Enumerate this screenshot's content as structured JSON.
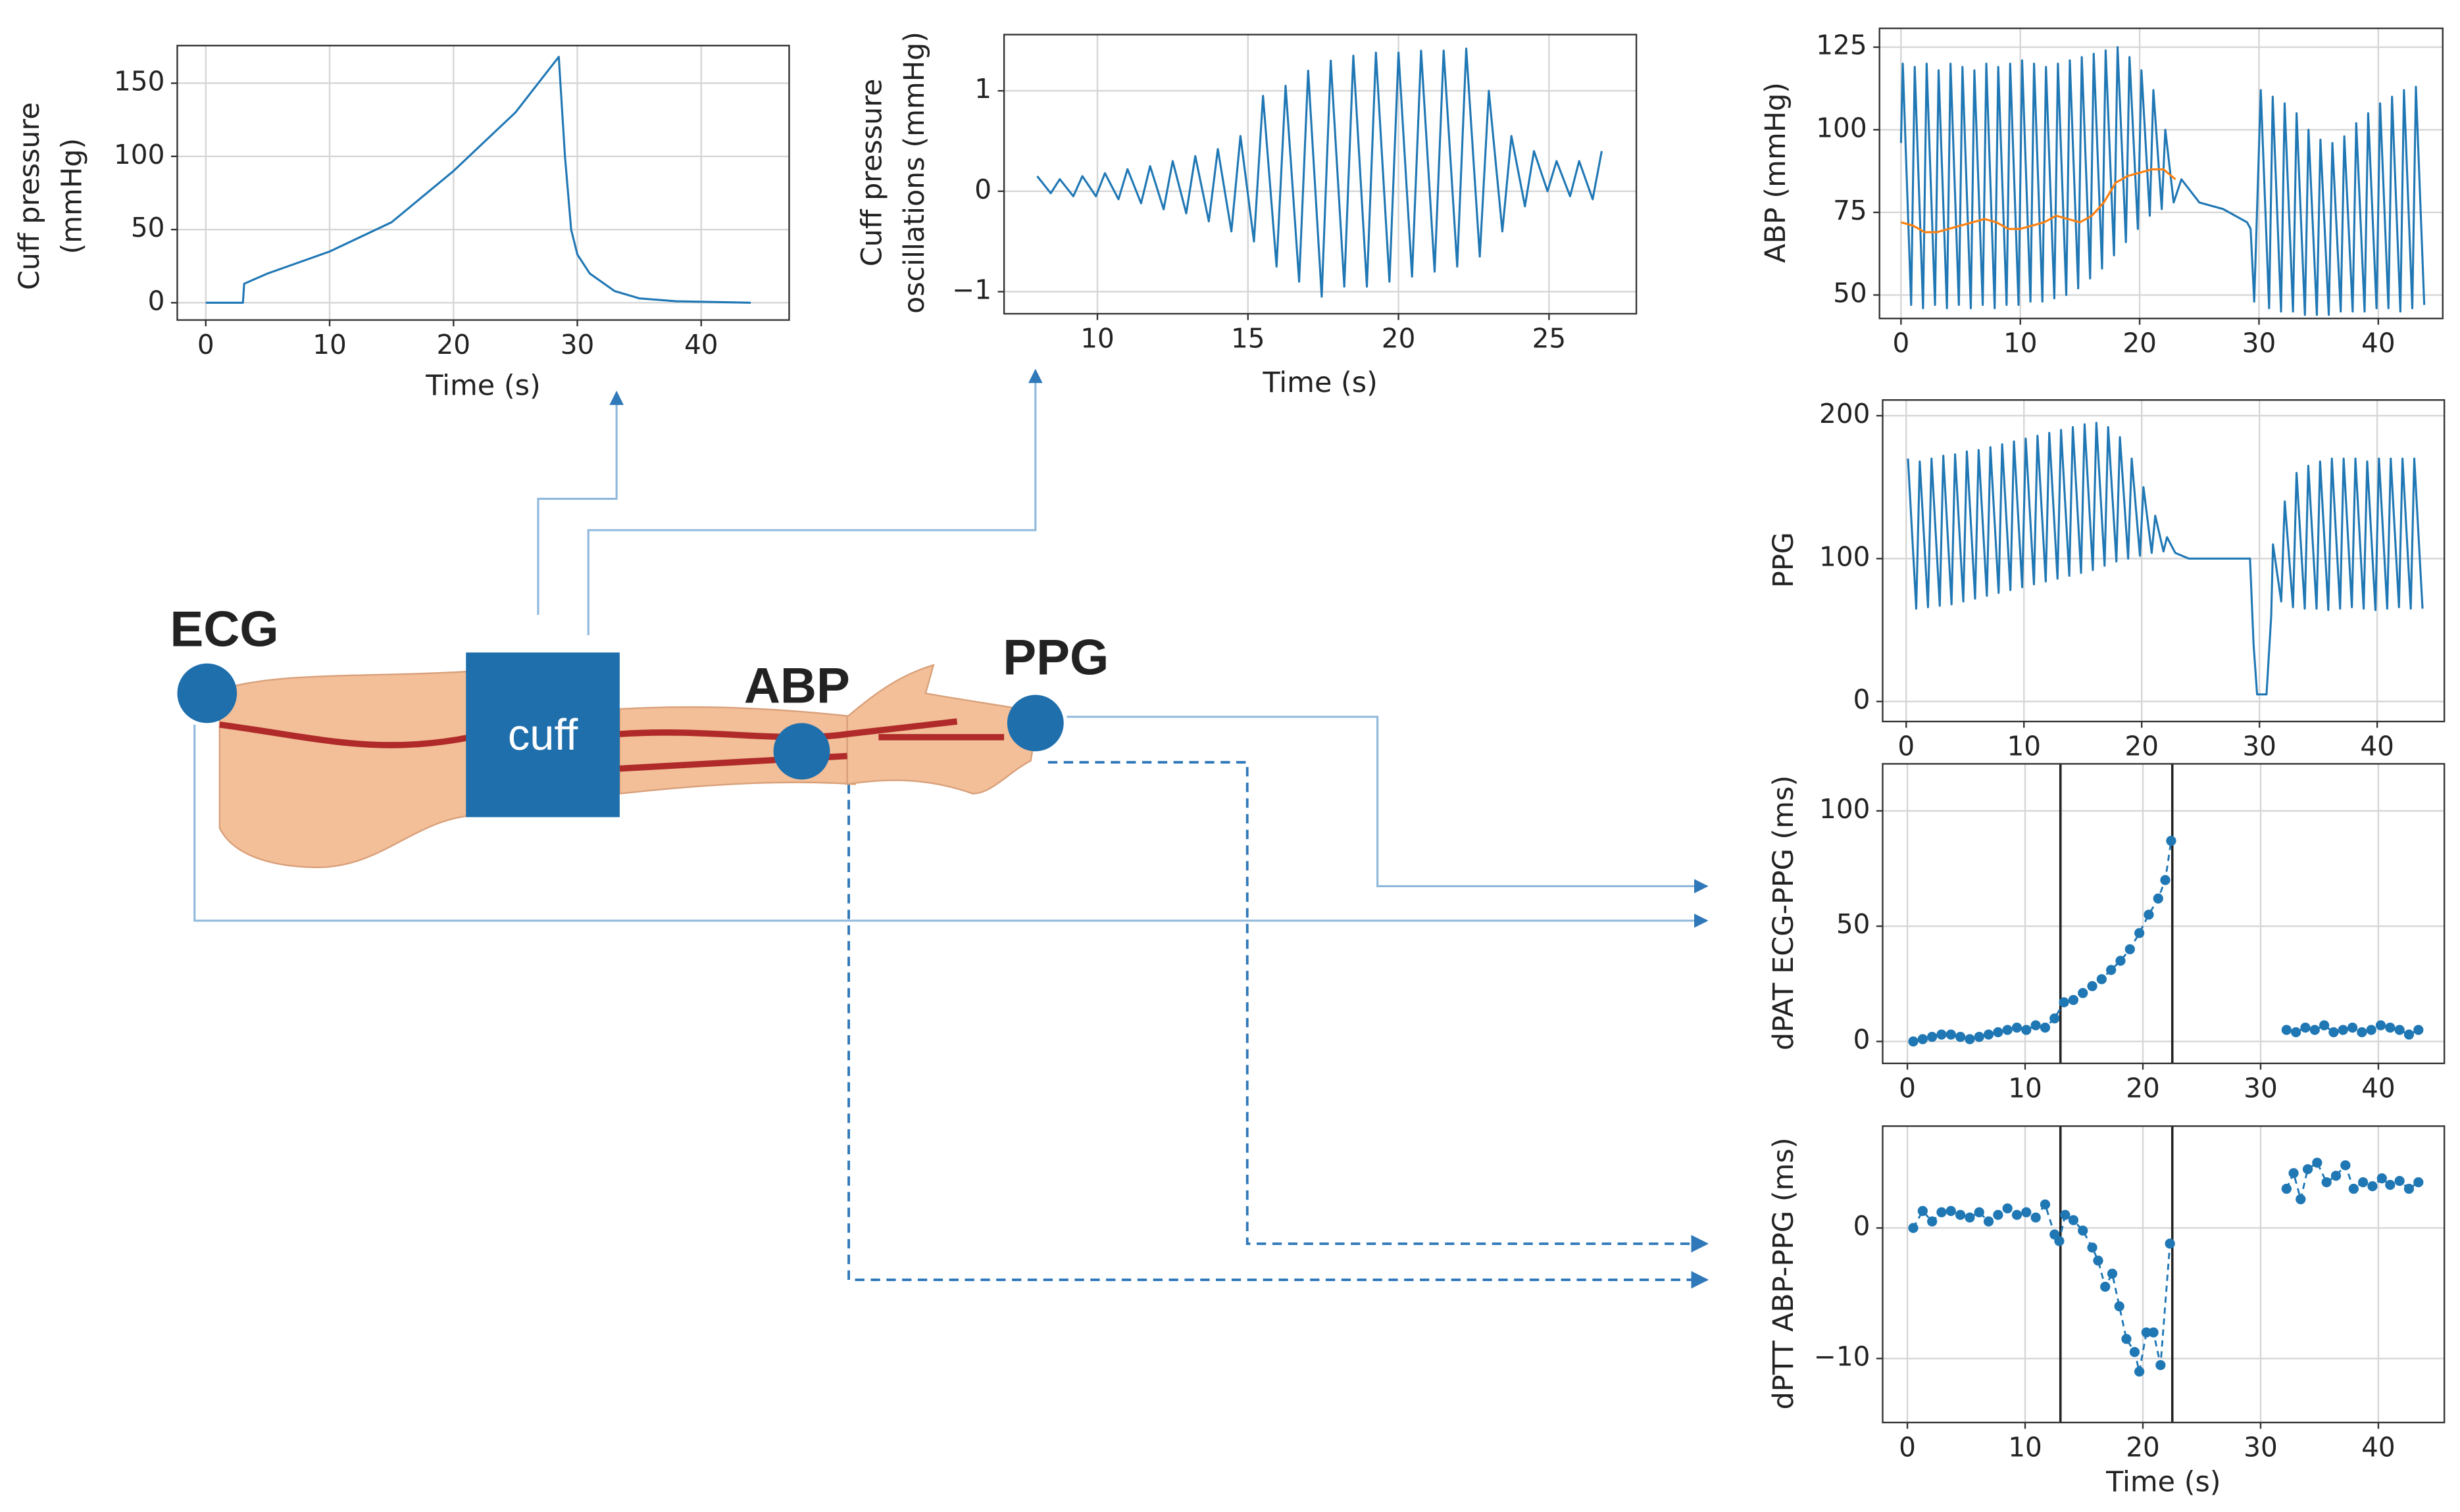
{
  "chart_data": [
    {
      "type": "line",
      "y_label": [
        "Cuff pressure",
        "(mmHg)"
      ],
      "x_label": "Time (s)",
      "grid": true,
      "xlim": [
        -2.3,
        47.1
      ],
      "ylim": [
        -11.8,
        175.7
      ],
      "xticks": [
        0,
        10,
        20,
        30,
        40
      ],
      "yticks": [
        0,
        50,
        100,
        150
      ],
      "series": [
        {
          "color": "#1f77b4",
          "x": [
            0,
            3,
            3.1,
            5,
            10,
            15,
            20,
            25,
            28.5,
            29,
            29.5,
            30,
            31,
            33,
            35,
            38,
            44
          ],
          "values": [
            0,
            0,
            13,
            20,
            35,
            55,
            90,
            130,
            168,
            100,
            50,
            33,
            20,
            8,
            3,
            1,
            0
          ]
        }
      ]
    },
    {
      "type": "line",
      "y_label": [
        "Cuff pressure",
        "oscillations (mmHg)"
      ],
      "x_label": "Time (s)",
      "grid": true,
      "xlim": [
        6.9,
        27.9
      ],
      "ylim": [
        -1.22,
        1.56
      ],
      "xticks": [
        10,
        15,
        20,
        25
      ],
      "yticks": [
        {
          "value": -1,
          "label": "−1"
        },
        0,
        1
      ],
      "series": [
        {
          "color": "#1f77b4",
          "x": [
            8,
            8.45,
            8.75,
            9.2,
            9.5,
            9.95,
            10.25,
            10.7,
            11,
            11.45,
            11.75,
            12.2,
            12.5,
            12.95,
            13.25,
            13.7,
            14,
            14.45,
            14.75,
            15.2,
            15.5,
            15.95,
            16.25,
            16.7,
            17,
            17.45,
            17.75,
            18.2,
            18.5,
            18.95,
            19.25,
            19.7,
            20,
            20.45,
            20.75,
            21.2,
            21.5,
            21.95,
            22.25,
            22.7,
            23,
            23.45,
            23.75,
            24.2,
            24.5,
            24.95,
            25.25,
            25.7,
            26,
            26.45,
            26.75
          ],
          "values": [
            0.15,
            -0.02,
            0.12,
            -0.05,
            0.15,
            -0.05,
            0.18,
            -0.08,
            0.22,
            -0.12,
            0.25,
            -0.18,
            0.3,
            -0.22,
            0.35,
            -0.3,
            0.42,
            -0.4,
            0.55,
            -0.5,
            0.95,
            -0.75,
            1.05,
            -0.9,
            1.2,
            -1.05,
            1.3,
            -0.95,
            1.35,
            -0.95,
            1.38,
            -0.9,
            1.38,
            -0.85,
            1.4,
            -0.8,
            1.4,
            -0.75,
            1.42,
            -0.65,
            1,
            -0.4,
            0.55,
            -0.15,
            0.4,
            0,
            0.3,
            -0.05,
            0.3,
            -0.08,
            0.4
          ]
        }
      ]
    },
    {
      "type": "line",
      "y_label": [
        "ABP (mmHg)"
      ],
      "grid": true,
      "xlim": [
        -1.8,
        45.4
      ],
      "ylim": [
        42.9,
        130.7
      ],
      "xticks": [
        0,
        10,
        20,
        30,
        40
      ],
      "yticks": [
        50,
        75,
        100,
        125
      ],
      "series": [
        {
          "color": "#1f77b4",
          "x": [
            0,
            0.15,
            0.85,
            1.15,
            1.85,
            2.15,
            2.85,
            3.15,
            3.85,
            4.15,
            4.85,
            5.15,
            5.85,
            6.15,
            6.85,
            7.15,
            7.85,
            8.15,
            8.85,
            9.15,
            9.85,
            10.15,
            10.85,
            11.15,
            11.85,
            12.15,
            12.85,
            13.15,
            13.85,
            14.15,
            14.85,
            15.15,
            15.85,
            16.15,
            16.85,
            17.15,
            17.85,
            18.15,
            18.85,
            19.15,
            19.85,
            20.15,
            20.85,
            21.15,
            21.85,
            22.15,
            22.85,
            23.5,
            25,
            27,
            29,
            29.3,
            29.6,
            30.15,
            30.85,
            31.15,
            31.85,
            32.15,
            32.85,
            33.15,
            33.85,
            34.15,
            34.85,
            35.15,
            35.85,
            36.15,
            36.85,
            37.15,
            37.85,
            38.15,
            38.85,
            39.15,
            39.85,
            40.15,
            40.85,
            41.15,
            41.85,
            42.15,
            42.85,
            43.15,
            43.85
          ],
          "values": [
            96,
            120,
            47,
            119,
            46,
            120,
            47,
            118,
            46,
            120,
            47,
            119,
            46,
            118,
            47,
            120,
            46,
            119,
            47,
            120,
            47,
            121,
            48,
            120,
            48,
            119,
            49,
            120,
            50,
            121,
            52,
            122,
            55,
            123,
            58,
            124,
            62,
            125,
            66,
            122,
            70,
            118,
            74,
            112,
            76,
            100,
            78,
            85,
            78,
            76,
            72,
            70,
            48,
            112,
            46,
            110,
            45,
            108,
            45,
            105,
            44,
            100,
            44,
            97,
            44,
            96,
            45,
            98,
            45,
            102,
            45,
            105,
            46,
            108,
            46,
            110,
            45,
            112,
            46,
            113,
            47
          ]
        },
        {
          "color": "#ff7f0e",
          "x": [
            0,
            1,
            2,
            3,
            4,
            5,
            6,
            7,
            8,
            9,
            10,
            11,
            12,
            13,
            14,
            15,
            16,
            17,
            18,
            19,
            20,
            21,
            22,
            23
          ],
          "values": [
            72,
            71,
            69,
            69,
            70,
            71,
            72,
            73,
            72,
            70,
            70,
            71,
            72,
            74,
            73,
            72,
            74,
            78,
            84,
            86,
            87,
            88,
            88,
            85
          ]
        }
      ]
    },
    {
      "type": "line",
      "y_label": [
        "PPG"
      ],
      "grid": true,
      "xlim": [
        -2,
        45.7
      ],
      "ylim": [
        -14,
        211
      ],
      "xticks": [
        0,
        10,
        20,
        30,
        40
      ],
      "yticks": [
        0,
        100,
        200
      ],
      "series": [
        {
          "color": "#1f77b4",
          "x": [
            0.15,
            0.85,
            1.15,
            1.85,
            2.15,
            2.85,
            3.15,
            3.85,
            4.15,
            4.85,
            5.15,
            5.85,
            6.15,
            6.85,
            7.15,
            7.85,
            8.15,
            8.85,
            9.15,
            9.85,
            10.15,
            10.85,
            11.15,
            11.85,
            12.15,
            12.85,
            13.15,
            13.85,
            14.15,
            14.85,
            15.15,
            15.85,
            16.15,
            16.85,
            17.15,
            17.85,
            18.15,
            18.85,
            19.15,
            19.85,
            20.15,
            20.85,
            21.15,
            21.85,
            22.15,
            22.85,
            24,
            26,
            28.5,
            29.2,
            29.5,
            29.8,
            30.6,
            31,
            31.15,
            31.85,
            32.15,
            32.85,
            33.15,
            33.85,
            34.15,
            34.85,
            35.15,
            35.85,
            36.15,
            36.85,
            37.15,
            37.85,
            38.15,
            38.85,
            39.15,
            39.85,
            40.15,
            40.85,
            41.15,
            41.85,
            42.15,
            42.85,
            43.15,
            43.85
          ],
          "values": [
            170,
            65,
            168,
            66,
            170,
            67,
            172,
            68,
            173,
            70,
            175,
            72,
            176,
            74,
            178,
            76,
            180,
            78,
            182,
            80,
            184,
            82,
            186,
            84,
            188,
            86,
            190,
            88,
            192,
            90,
            194,
            92,
            195,
            95,
            192,
            98,
            185,
            100,
            170,
            102,
            150,
            104,
            130,
            105,
            115,
            104,
            100,
            100,
            100,
            100,
            40,
            5,
            5,
            60,
            110,
            70,
            140,
            66,
            160,
            65,
            165,
            65,
            168,
            64,
            170,
            65,
            170,
            66,
            170,
            65,
            168,
            64,
            170,
            65,
            170,
            66,
            170,
            65,
            170,
            65
          ]
        }
      ]
    },
    {
      "type": "scatter",
      "y_label": [
        "dPAT ECG-PPG (ms)"
      ],
      "grid": true,
      "xlim": [
        -2.1,
        45.6
      ],
      "ylim": [
        -9.5,
        120.4
      ],
      "xticks": [
        0,
        10,
        20,
        30,
        40
      ],
      "yticks": [
        0,
        50,
        100
      ],
      "vlines": [
        13,
        22.5
      ],
      "vline_color": "#222222",
      "series": [
        {
          "color": "#1f77b4",
          "x": [
            0.5,
            1.3,
            2.1,
            2.9,
            3.7,
            4.5,
            5.3,
            6.1,
            6.9,
            7.7,
            8.5,
            9.3,
            10.1,
            10.9,
            11.7,
            12.5,
            13.3,
            14.1,
            14.9,
            15.7,
            16.5,
            17.3,
            18.1,
            18.9,
            19.7,
            20.5,
            21.3,
            21.9,
            22.4,
            null,
            32.2,
            33,
            33.8,
            34.6,
            35.4,
            36.2,
            37,
            37.8,
            38.6,
            39.4,
            40.2,
            41,
            41.8,
            42.6,
            43.4
          ],
          "values": [
            0,
            1,
            2,
            3,
            3,
            2,
            1,
            2,
            3,
            4,
            5,
            6,
            5,
            7,
            6,
            10,
            17,
            18,
            21,
            24,
            27,
            31,
            35,
            40,
            47,
            55,
            62,
            70,
            87,
            null,
            5,
            4,
            6,
            5,
            7,
            4,
            5,
            6,
            4,
            5,
            7,
            6,
            5,
            3,
            5
          ]
        }
      ]
    },
    {
      "type": "scatter",
      "y_label": [
        "dPTT ABP-PPG (ms)"
      ],
      "x_label": "Time (s)",
      "grid": true,
      "xlim": [
        -2.1,
        45.6
      ],
      "ylim": [
        -14.9,
        7.8
      ],
      "xticks": [
        0,
        10,
        20,
        30,
        40
      ],
      "yticks": [
        {
          "value": -10,
          "label": "−10"
        },
        0
      ],
      "vlines": [
        13,
        22.5
      ],
      "vline_color": "#222222",
      "series": [
        {
          "color": "#1f77b4",
          "x": [
            0.5,
            1.3,
            2.1,
            2.9,
            3.7,
            4.5,
            5.3,
            6.1,
            6.9,
            7.7,
            8.5,
            9.3,
            10.1,
            10.9,
            11.7,
            12.5,
            12.9,
            13.4,
            14.1,
            14.9,
            15.7,
            16.2,
            16.8,
            17.4,
            18,
            18.6,
            19.3,
            19.7,
            20.3,
            20.9,
            21.5,
            22.3,
            null,
            32.2,
            32.8,
            33.4,
            34,
            34.8,
            35.6,
            36.4,
            37.2,
            37.9,
            38.7,
            39.5,
            40.3,
            41,
            41.8,
            42.6,
            43.4
          ],
          "values": [
            0,
            1.3,
            0.5,
            1.2,
            1.3,
            1,
            0.8,
            1.2,
            0.5,
            1,
            1.5,
            1,
            1.2,
            0.8,
            1.8,
            -0.5,
            -1,
            1,
            0.6,
            -0.2,
            -1.5,
            -2.5,
            -4.5,
            -3.5,
            -6,
            -8.5,
            -9.5,
            -11,
            -8,
            -8,
            -10.5,
            -1.2,
            null,
            3,
            4.2,
            2.2,
            4.5,
            5,
            3.5,
            4,
            4.8,
            3,
            3.5,
            3.2,
            3.8,
            3.3,
            3.6,
            3,
            3.5
          ]
        }
      ]
    }
  ],
  "diagram": {
    "labels": {
      "ecg": "ECG",
      "cuff": "cuff",
      "abp": "ABP",
      "ppg": "PPG"
    }
  }
}
